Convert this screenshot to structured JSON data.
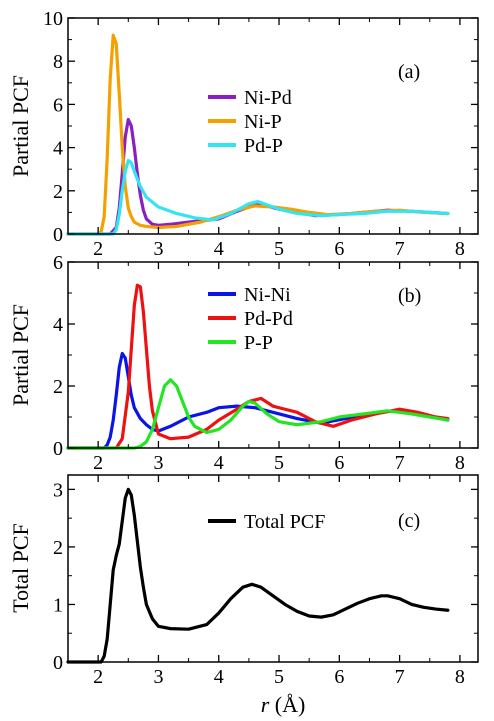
{
  "chart_data": [
    {
      "type": "line",
      "panel_label": "(a)",
      "ylabel": "Partial PCF",
      "xlim": [
        1.5,
        8.3
      ],
      "ylim": [
        0,
        10
      ],
      "xticks": [
        2,
        3,
        4,
        5,
        6,
        7,
        8
      ],
      "yticks": [
        0,
        2,
        4,
        6,
        8,
        10
      ],
      "grid": false,
      "legend_position": "upper-center",
      "series": [
        {
          "name": "Ni-Pd",
          "color": "#8b1fc0",
          "x": [
            1.5,
            2.2,
            2.3,
            2.35,
            2.4,
            2.45,
            2.5,
            2.55,
            2.6,
            2.65,
            2.7,
            2.75,
            2.8,
            2.9,
            3.0,
            3.2,
            3.5,
            4.0,
            4.3,
            4.6,
            4.8,
            5.0,
            5.3,
            5.6,
            6.0,
            6.4,
            6.8,
            7.2,
            7.5,
            7.8
          ],
          "y": [
            0,
            0,
            0.3,
            1.2,
            2.8,
            4.5,
            5.3,
            5.0,
            4.0,
            2.8,
            1.8,
            1.1,
            0.7,
            0.45,
            0.4,
            0.45,
            0.55,
            0.7,
            1.05,
            1.35,
            1.3,
            1.15,
            1.0,
            0.85,
            0.9,
            1.0,
            1.1,
            1.05,
            1.0,
            0.95
          ]
        },
        {
          "name": "Ni-P",
          "color": "#f5a000",
          "x": [
            1.5,
            2.0,
            2.05,
            2.1,
            2.15,
            2.2,
            2.25,
            2.3,
            2.35,
            2.4,
            2.45,
            2.5,
            2.55,
            2.6,
            2.7,
            2.8,
            3.0,
            3.3,
            3.7,
            4.0,
            4.3,
            4.6,
            4.9,
            5.2,
            5.5,
            5.8,
            6.2,
            6.6,
            7.0,
            7.4,
            7.8
          ],
          "y": [
            0,
            0,
            0.1,
            0.8,
            3.5,
            7.2,
            9.2,
            8.8,
            6.5,
            4.0,
            2.2,
            1.2,
            0.8,
            0.55,
            0.4,
            0.35,
            0.3,
            0.35,
            0.55,
            0.8,
            1.1,
            1.3,
            1.25,
            1.15,
            1.0,
            0.9,
            0.95,
            1.05,
            1.1,
            1.0,
            0.95
          ]
        },
        {
          "name": "Pd-P",
          "color": "#33e5f0",
          "x": [
            1.5,
            2.25,
            2.3,
            2.35,
            2.4,
            2.45,
            2.5,
            2.55,
            2.6,
            2.7,
            2.8,
            3.0,
            3.3,
            3.6,
            3.9,
            4.2,
            4.5,
            4.65,
            4.8,
            5.0,
            5.3,
            5.7,
            6.0,
            6.4,
            6.8,
            7.2,
            7.5,
            7.8
          ],
          "y": [
            0,
            0,
            0.2,
            0.9,
            2.0,
            2.9,
            3.4,
            3.3,
            2.9,
            2.2,
            1.7,
            1.25,
            0.95,
            0.75,
            0.65,
            0.95,
            1.4,
            1.5,
            1.35,
            1.15,
            0.95,
            0.85,
            0.9,
            0.95,
            1.05,
            1.05,
            1.0,
            0.95
          ]
        }
      ]
    },
    {
      "type": "line",
      "panel_label": "(b)",
      "ylabel": "Partial PCF",
      "xlim": [
        1.5,
        8.3
      ],
      "ylim": [
        0,
        6
      ],
      "xticks": [
        2,
        3,
        4,
        5,
        6,
        7,
        8
      ],
      "yticks": [
        0,
        2,
        4,
        6
      ],
      "grid": false,
      "legend_position": "upper-center",
      "series": [
        {
          "name": "Ni-Ni",
          "color": "#0a14e6",
          "x": [
            1.5,
            2.1,
            2.15,
            2.2,
            2.25,
            2.3,
            2.35,
            2.4,
            2.45,
            2.5,
            2.55,
            2.6,
            2.7,
            2.8,
            2.9,
            3.0,
            3.2,
            3.5,
            3.8,
            4.0,
            4.3,
            4.6,
            4.9,
            5.3,
            5.7,
            6.1,
            6.5,
            6.9,
            7.3,
            7.8
          ],
          "y": [
            0,
            0,
            0.1,
            0.35,
            0.9,
            1.7,
            2.6,
            3.05,
            2.9,
            2.3,
            1.7,
            1.3,
            0.95,
            0.75,
            0.6,
            0.55,
            0.7,
            1.0,
            1.15,
            1.3,
            1.35,
            1.3,
            1.15,
            0.95,
            0.8,
            0.95,
            1.1,
            1.2,
            1.1,
            0.9
          ]
        },
        {
          "name": "Pd-Pd",
          "color": "#ee1111",
          "x": [
            1.5,
            2.3,
            2.4,
            2.5,
            2.55,
            2.6,
            2.65,
            2.7,
            2.75,
            2.8,
            2.85,
            2.9,
            3.0,
            3.2,
            3.5,
            3.8,
            4.0,
            4.3,
            4.5,
            4.7,
            4.9,
            5.1,
            5.3,
            5.6,
            5.9,
            6.2,
            6.6,
            7.0,
            7.3,
            7.6,
            7.8
          ],
          "y": [
            0,
            0,
            0.3,
            1.8,
            3.2,
            4.6,
            5.25,
            5.2,
            4.4,
            3.2,
            2.0,
            1.2,
            0.45,
            0.3,
            0.35,
            0.6,
            0.9,
            1.25,
            1.5,
            1.6,
            1.35,
            1.25,
            1.15,
            0.85,
            0.7,
            0.9,
            1.1,
            1.25,
            1.15,
            1.0,
            0.95
          ]
        },
        {
          "name": "P-P",
          "color": "#22e622",
          "x": [
            1.5,
            2.6,
            2.7,
            2.8,
            2.9,
            3.0,
            3.1,
            3.2,
            3.3,
            3.4,
            3.5,
            3.6,
            3.8,
            4.0,
            4.2,
            4.4,
            4.5,
            4.6,
            4.8,
            5.0,
            5.3,
            5.7,
            6.0,
            6.4,
            6.8,
            7.2,
            7.5,
            7.8
          ],
          "y": [
            0,
            0,
            0.05,
            0.2,
            0.6,
            1.3,
            2.0,
            2.2,
            2.0,
            1.5,
            1.0,
            0.7,
            0.5,
            0.6,
            0.9,
            1.35,
            1.5,
            1.45,
            1.1,
            0.85,
            0.75,
            0.85,
            1.0,
            1.1,
            1.2,
            1.1,
            1.0,
            0.9
          ]
        }
      ]
    },
    {
      "type": "line",
      "panel_label": "(c)",
      "ylabel": "Total PCF",
      "xlabel": "r (Å)",
      "xlim": [
        1.5,
        8.3
      ],
      "ylim": [
        0,
        3.25
      ],
      "xticks": [
        2,
        3,
        4,
        5,
        6,
        7,
        8
      ],
      "yticks": [
        0,
        1,
        2,
        3
      ],
      "grid": false,
      "legend_position": "upper-right",
      "series": [
        {
          "name": "Total PCF",
          "color": "#000000",
          "x": [
            1.5,
            2.05,
            2.1,
            2.15,
            2.2,
            2.25,
            2.3,
            2.35,
            2.4,
            2.45,
            2.5,
            2.55,
            2.6,
            2.65,
            2.7,
            2.75,
            2.8,
            2.9,
            3.0,
            3.2,
            3.5,
            3.8,
            4.0,
            4.2,
            4.4,
            4.55,
            4.7,
            4.9,
            5.1,
            5.3,
            5.5,
            5.7,
            5.9,
            6.1,
            6.3,
            6.5,
            6.7,
            6.8,
            7.0,
            7.2,
            7.4,
            7.6,
            7.8
          ],
          "y": [
            0,
            0,
            0.1,
            0.4,
            1.0,
            1.6,
            1.85,
            2.05,
            2.45,
            2.85,
            3.0,
            2.9,
            2.55,
            2.1,
            1.65,
            1.3,
            1.0,
            0.75,
            0.62,
            0.58,
            0.57,
            0.65,
            0.85,
            1.1,
            1.3,
            1.35,
            1.3,
            1.15,
            1.0,
            0.88,
            0.8,
            0.78,
            0.82,
            0.92,
            1.02,
            1.1,
            1.15,
            1.15,
            1.1,
            1.0,
            0.95,
            0.92,
            0.9
          ]
        }
      ]
    }
  ]
}
